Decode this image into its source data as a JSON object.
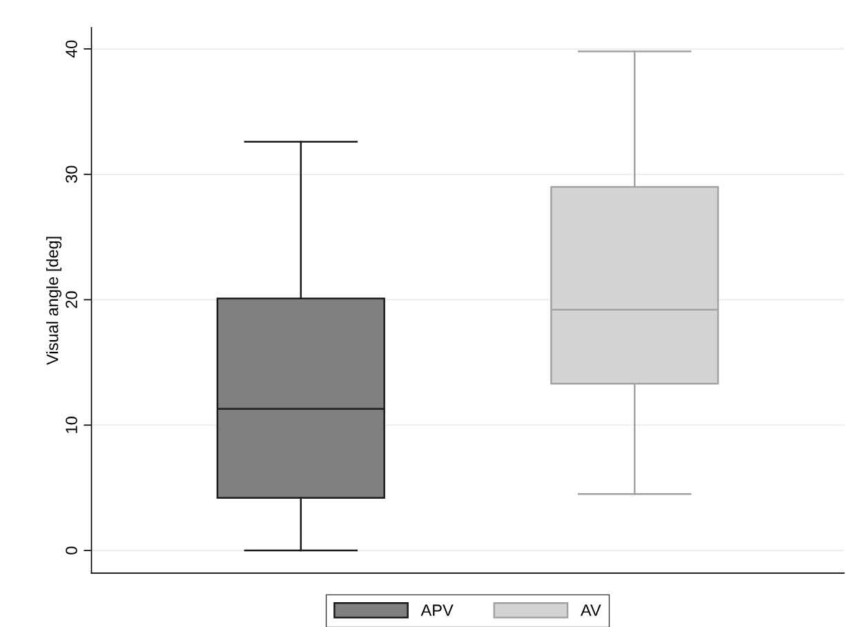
{
  "chart_data": {
    "type": "box",
    "ylabel": "Visual angle [deg]",
    "categories": [
      null
    ],
    "series": [
      {
        "name": "APV",
        "color": "#808080",
        "boxes": [
          {
            "low": 0,
            "q1": 4.2,
            "median": 11.3,
            "q3": 20.1,
            "high": 32.6
          }
        ]
      },
      {
        "name": "AV",
        "color": "#d3d3d3",
        "boxes": [
          {
            "low": 4.5,
            "q1": 13.3,
            "median": 19.2,
            "q3": 29.0,
            "high": 39.8
          }
        ]
      }
    ],
    "ylim": [
      -1.8,
      41.7
    ],
    "yticks": [
      0,
      10,
      20,
      30,
      40
    ],
    "grid": "y",
    "legend": "bottom"
  }
}
